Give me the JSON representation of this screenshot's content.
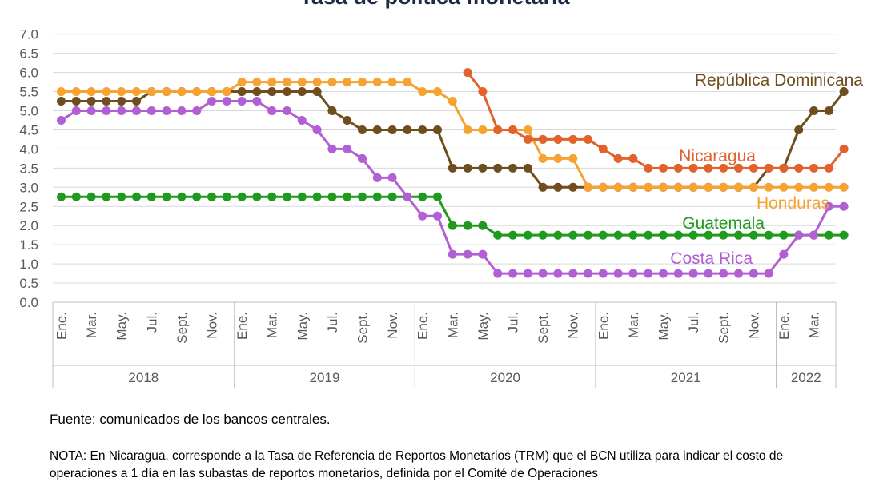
{
  "chart_data": {
    "type": "line",
    "title": "Tasa de política monetaria",
    "ylim": [
      0,
      7
    ],
    "y_ticks": [
      "0.0",
      "0.5",
      "1.0",
      "1.5",
      "2.0",
      "2.5",
      "3.0",
      "3.5",
      "4.0",
      "4.5",
      "5.0",
      "5.5",
      "6.0",
      "6.5",
      "7.0"
    ],
    "grid": true,
    "month_labels": [
      "Ene.",
      "Mar.",
      "May.",
      "Jul.",
      "Sept.",
      "Nov.",
      "Ene.",
      "Mar.",
      "May.",
      "Jul.",
      "Sept.",
      "Nov.",
      "Ene.",
      "Mar.",
      "May.",
      "Jul.",
      "Sept.",
      "Nov.",
      "Ene.",
      "Mar.",
      "May.",
      "Jul.",
      "Sept.",
      "Nov.",
      "Ene.",
      "Mar."
    ],
    "years": [
      {
        "label": "2018",
        "start": 0,
        "end": 12
      },
      {
        "label": "2019",
        "start": 12,
        "end": 24
      },
      {
        "label": "2020",
        "start": 24,
        "end": 36
      },
      {
        "label": "2021",
        "start": 36,
        "end": 48
      },
      {
        "label": "2022",
        "start": 48,
        "end": 52
      }
    ],
    "series": [
      {
        "name": "República Dominicana",
        "color": "#6e4e1e",
        "start": 0,
        "values": [
          5.25,
          5.25,
          5.25,
          5.25,
          5.25,
          5.25,
          5.5,
          5.5,
          5.5,
          5.5,
          5.5,
          5.5,
          5.5,
          5.5,
          5.5,
          5.5,
          5.5,
          5.5,
          5.0,
          4.75,
          4.5,
          4.5,
          4.5,
          4.5,
          4.5,
          4.5,
          3.5,
          3.5,
          3.5,
          3.5,
          3.5,
          3.5,
          3.0,
          3.0,
          3.0,
          3.0,
          3.0,
          3.0,
          3.0,
          3.0,
          3.0,
          3.0,
          3.0,
          3.0,
          3.0,
          3.0,
          3.0,
          3.5,
          3.5,
          4.5,
          5.0,
          5.0,
          5.5
        ]
      },
      {
        "name": "Honduras",
        "color": "#f5a332",
        "start": 0,
        "values": [
          5.5,
          5.5,
          5.5,
          5.5,
          5.5,
          5.5,
          5.5,
          5.5,
          5.5,
          5.5,
          5.5,
          5.5,
          5.75,
          5.75,
          5.75,
          5.75,
          5.75,
          5.75,
          5.75,
          5.75,
          5.75,
          5.75,
          5.75,
          5.75,
          5.5,
          5.5,
          5.25,
          4.5,
          4.5,
          4.5,
          4.5,
          4.5,
          3.75,
          3.75,
          3.75,
          3.0,
          3.0,
          3.0,
          3.0,
          3.0,
          3.0,
          3.0,
          3.0,
          3.0,
          3.0,
          3.0,
          3.0,
          3.0,
          3.0,
          3.0,
          3.0,
          3.0,
          3.0
        ]
      },
      {
        "name": "Nicaragua",
        "color": "#e2622d",
        "start": 27,
        "values": [
          6.0,
          5.5,
          4.5,
          4.5,
          4.25,
          4.25,
          4.25,
          4.25,
          4.25,
          4.0,
          3.75,
          3.75,
          3.5,
          3.5,
          3.5,
          3.5,
          3.5,
          3.5,
          3.5,
          3.5,
          3.5,
          3.5,
          3.5,
          3.5,
          3.5,
          4.0
        ]
      },
      {
        "name": "Guatemala",
        "color": "#1f9a1f",
        "start": 0,
        "values": [
          2.75,
          2.75,
          2.75,
          2.75,
          2.75,
          2.75,
          2.75,
          2.75,
          2.75,
          2.75,
          2.75,
          2.75,
          2.75,
          2.75,
          2.75,
          2.75,
          2.75,
          2.75,
          2.75,
          2.75,
          2.75,
          2.75,
          2.75,
          2.75,
          2.75,
          2.75,
          2.0,
          2.0,
          2.0,
          1.75,
          1.75,
          1.75,
          1.75,
          1.75,
          1.75,
          1.75,
          1.75,
          1.75,
          1.75,
          1.75,
          1.75,
          1.75,
          1.75,
          1.75,
          1.75,
          1.75,
          1.75,
          1.75,
          1.75,
          1.75,
          1.75,
          1.75,
          1.75
        ]
      },
      {
        "name": "Costa Rica",
        "color": "#b15fd3",
        "start": 0,
        "values": [
          4.75,
          5.0,
          5.0,
          5.0,
          5.0,
          5.0,
          5.0,
          5.0,
          5.0,
          5.0,
          5.25,
          5.25,
          5.25,
          5.25,
          5.0,
          5.0,
          4.75,
          4.5,
          4.0,
          4.0,
          3.75,
          3.25,
          3.25,
          2.75,
          2.25,
          2.25,
          1.25,
          1.25,
          1.25,
          0.75,
          0.75,
          0.75,
          0.75,
          0.75,
          0.75,
          0.75,
          0.75,
          0.75,
          0.75,
          0.75,
          0.75,
          0.75,
          0.75,
          0.75,
          0.75,
          0.75,
          0.75,
          0.75,
          1.25,
          1.75,
          1.75,
          2.5,
          2.5
        ]
      }
    ]
  },
  "footer": {
    "source": "Fuente: comunicados de los bancos centrales.",
    "note": "NOTA: En Nicaragua, corresponde a la Tasa de Referencia de Reportos Monetarios (TRM) que el BCN utiliza para indicar el costo de operaciones a 1 día en las subastas de reportos monetarios, definida por el Comité de Operaciones"
  }
}
